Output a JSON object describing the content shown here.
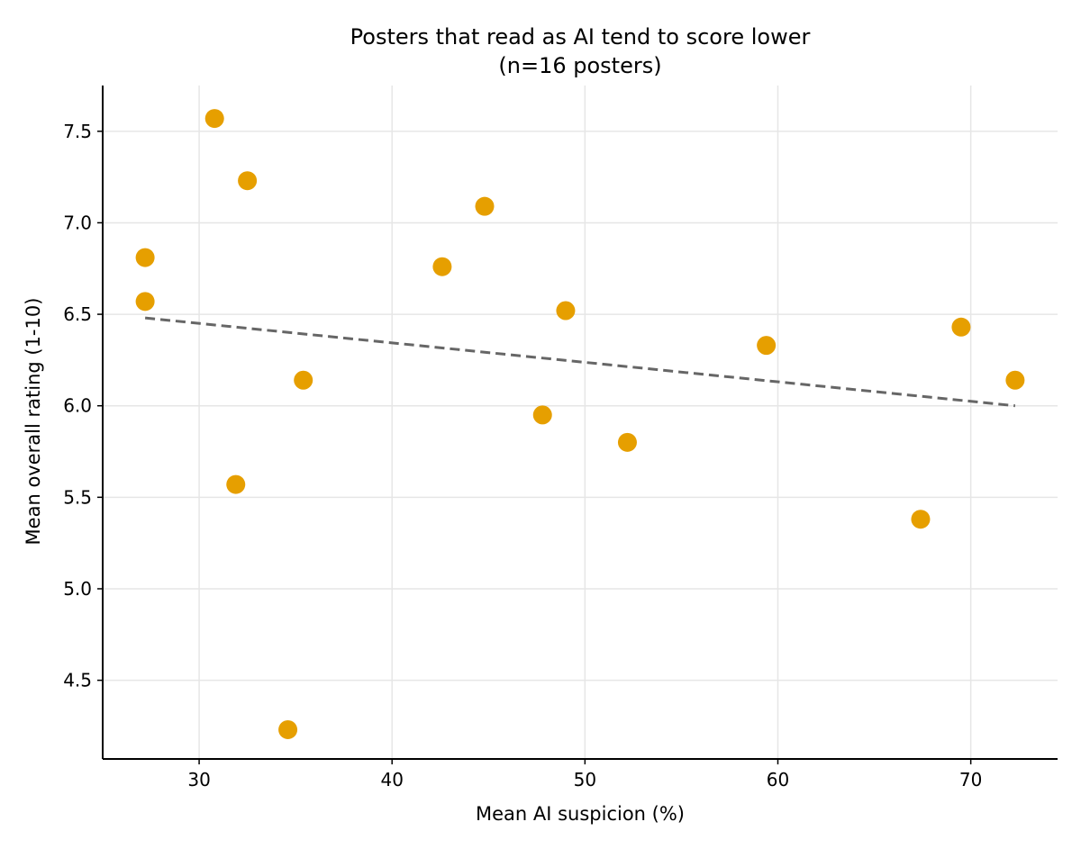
{
  "chart_data": {
    "type": "scatter",
    "title": "Posters that read as AI tend to score lower",
    "subtitle": "(n=16 posters)",
    "xlabel": "Mean AI suspicion (%)",
    "ylabel": "Mean overall rating (1-10)",
    "xlim": [
      25,
      74.5
    ],
    "ylim": [
      4.07,
      7.75
    ],
    "xticks": [
      30,
      40,
      50,
      60,
      70
    ],
    "yticks": [
      4.5,
      5.0,
      5.5,
      6.0,
      6.5,
      7.0,
      7.5
    ],
    "xtick_labels": [
      "30",
      "40",
      "50",
      "60",
      "70"
    ],
    "ytick_labels": [
      "4.5",
      "5.0",
      "5.5",
      "6.0",
      "6.5",
      "7.0",
      "7.5"
    ],
    "grid": true,
    "point_color": "#E69F00",
    "trend_color": "#666666",
    "points": [
      {
        "x": 27.2,
        "y": 6.81
      },
      {
        "x": 27.2,
        "y": 6.57
      },
      {
        "x": 30.8,
        "y": 7.57
      },
      {
        "x": 31.9,
        "y": 5.57
      },
      {
        "x": 32.5,
        "y": 7.23
      },
      {
        "x": 34.6,
        "y": 4.23
      },
      {
        "x": 35.4,
        "y": 6.14
      },
      {
        "x": 42.6,
        "y": 6.76
      },
      {
        "x": 44.8,
        "y": 7.09
      },
      {
        "x": 47.8,
        "y": 5.95
      },
      {
        "x": 49.0,
        "y": 6.52
      },
      {
        "x": 52.2,
        "y": 5.8
      },
      {
        "x": 59.4,
        "y": 6.33
      },
      {
        "x": 67.4,
        "y": 5.38
      },
      {
        "x": 69.5,
        "y": 6.43
      },
      {
        "x": 72.3,
        "y": 6.14
      }
    ],
    "trendline": {
      "x": [
        27.2,
        72.3
      ],
      "y": [
        6.48,
        6.0
      ],
      "style": "dashed"
    }
  }
}
